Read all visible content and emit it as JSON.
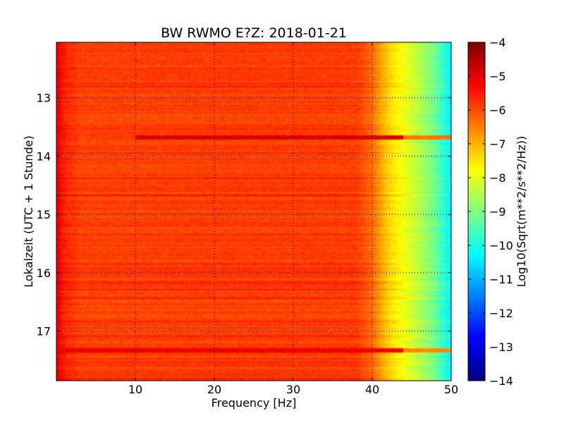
{
  "chart_data": {
    "type": "heatmap",
    "title": "BW RWMO E?Z: 2018-01-21",
    "xlabel": "Frequency [Hz]",
    "ylabel": "Lokalzeit (UTC + 1 Stunde)",
    "xlim": [
      0,
      50
    ],
    "ylim": [
      12.05,
      17.85
    ],
    "x_ticks": [
      "10",
      "20",
      "30",
      "40",
      "50"
    ],
    "x_tick_values": [
      10,
      20,
      30,
      40,
      50
    ],
    "y_ticks": [
      "13",
      "14",
      "15",
      "16",
      "17"
    ],
    "y_tick_values": [
      13,
      14,
      15,
      16,
      17
    ],
    "grid": true,
    "colormap": "jet",
    "colorbar": {
      "label": "Log10(Sqrt(m**2/s**2/Hz))",
      "range": [
        -14,
        -4
      ],
      "ticks": [
        "−4",
        "−5",
        "−6",
        "−7",
        "−8",
        "−9",
        "−10",
        "−11",
        "−12",
        "−13",
        "−14"
      ],
      "tick_values": [
        -4,
        -5,
        -6,
        -7,
        -8,
        -9,
        -10,
        -11,
        -12,
        -13,
        -14
      ]
    },
    "spectrum_profile": [
      {
        "freq": 0,
        "value": -5.0
      },
      {
        "freq": 1,
        "value": -5.6
      },
      {
        "freq": 3,
        "value": -5.9
      },
      {
        "freq": 20,
        "value": -5.85
      },
      {
        "freq": 38,
        "value": -5.85
      },
      {
        "freq": 40,
        "value": -6.3
      },
      {
        "freq": 42,
        "value": -7.3
      },
      {
        "freq": 44,
        "value": -7.9
      },
      {
        "freq": 46,
        "value": -8.5
      },
      {
        "freq": 48,
        "value": -9.2
      },
      {
        "freq": 50,
        "value": -10.4
      }
    ],
    "strong_bands": [
      {
        "time": 13.68,
        "freq_min": 10,
        "freq_max": 50,
        "value": -4.9
      },
      {
        "time": 17.32,
        "freq_min": 0,
        "freq_max": 50,
        "value": -5.1
      }
    ]
  },
  "colors": {
    "background": "#ffffff",
    "axes_frame": "#000000",
    "grid": "#000000"
  }
}
